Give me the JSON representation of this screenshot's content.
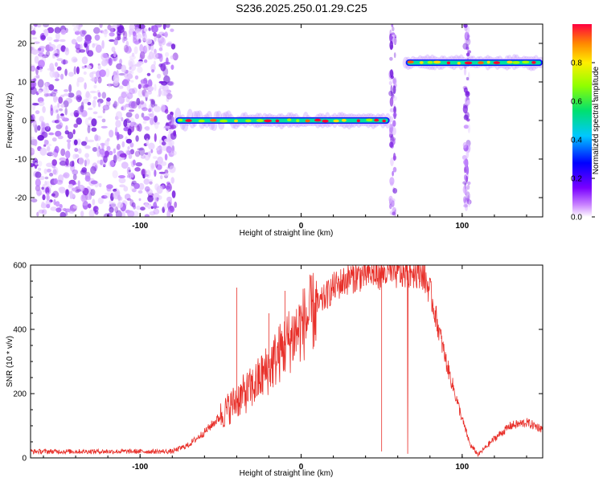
{
  "title": "S236.2025.250.01.29.C25",
  "colors": {
    "snr_line": "#e8302a",
    "scatter_purple": "#8a2be2",
    "axes": "#000000"
  },
  "chart_data": [
    {
      "type": "heatmap",
      "name": "spectrogram",
      "xlabel": "Height of straight line (km)",
      "ylabel": "Frequency (Hz)",
      "xlim": [
        -168,
        150
      ],
      "ylim": [
        -25,
        25
      ],
      "xticks": [
        "-100",
        "0",
        "100"
      ],
      "yticks": [
        "20",
        "10",
        "0",
        "-10",
        "-20"
      ],
      "colorbar": {
        "label": "Normalized spectral amplitude",
        "range": [
          0.0,
          1.0
        ],
        "ticks": [
          "0.8",
          "0.6",
          "0.4",
          "0.2",
          "0.0"
        ]
      },
      "noise_region_x": [
        -168,
        -78
      ],
      "ridge_segments": [
        {
          "x_start": -78,
          "x_end": 55,
          "freq_hz": 0
        },
        {
          "x_start": 65,
          "x_end": 150,
          "freq_hz": 15
        }
      ],
      "vertical_streaks_x": [
        57,
        103
      ]
    },
    {
      "type": "line",
      "name": "snr",
      "xlabel": "Height of straight line (km)",
      "ylabel": "SNR (10 * v/v)",
      "xlim": [
        -168,
        150
      ],
      "ylim": [
        0,
        600
      ],
      "xticks": [
        "-100",
        "0",
        "100"
      ],
      "yticks": [
        "600",
        "400",
        "200",
        "0"
      ],
      "x": [
        -168,
        -140,
        -110,
        -80,
        -70,
        -60,
        -50,
        -40,
        -30,
        -20,
        -10,
        0,
        10,
        20,
        30,
        40,
        50,
        60,
        70,
        75,
        80,
        90,
        100,
        105,
        110,
        120,
        130,
        140,
        150
      ],
      "y": [
        20,
        20,
        20,
        20,
        40,
        80,
        130,
        180,
        220,
        280,
        350,
        410,
        470,
        530,
        560,
        570,
        575,
        575,
        580,
        580,
        520,
        300,
        120,
        40,
        10,
        60,
        100,
        110,
        90
      ]
    }
  ]
}
